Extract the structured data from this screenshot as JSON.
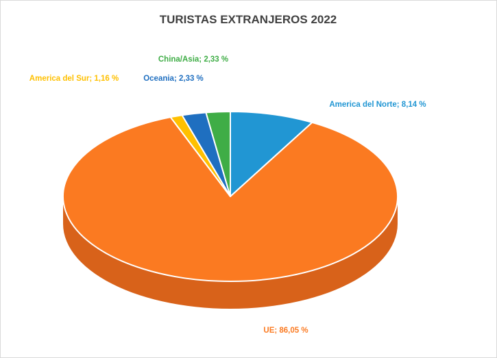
{
  "chart_data": {
    "type": "pie",
    "title": "TURISTAS EXTRANJEROS 2022",
    "slices": [
      {
        "name": "America del Norte",
        "value": 8.14,
        "label": "America del Norte; 8,14 %",
        "color": "#2196d3",
        "side": "#1670a0"
      },
      {
        "name": "UE",
        "value": 86.05,
        "label": "UE; 86,05 %",
        "color": "#fb7a21",
        "side": "#d8621a"
      },
      {
        "name": "America del Sur",
        "value": 1.16,
        "label": "America del Sur; 1,16 %",
        "color": "#ffc000",
        "side": "#cc9a00"
      },
      {
        "name": "Oceania",
        "value": 2.33,
        "label": "Oceania; 2,33 %",
        "color": "#1f6fc0",
        "side": "#15508c"
      },
      {
        "name": "China/Asia",
        "value": 2.33,
        "label": "China/Asia; 2,33 %",
        "color": "#3fad46",
        "side": "#2c8033"
      }
    ],
    "legend": "none",
    "style": "3d-pie",
    "label_colors": {
      "America del Norte": "#2196d3",
      "UE": "#fb7a21",
      "America del Sur": "#ffc000",
      "Oceania": "#1f6fc0",
      "China/Asia": "#3fad46"
    }
  }
}
